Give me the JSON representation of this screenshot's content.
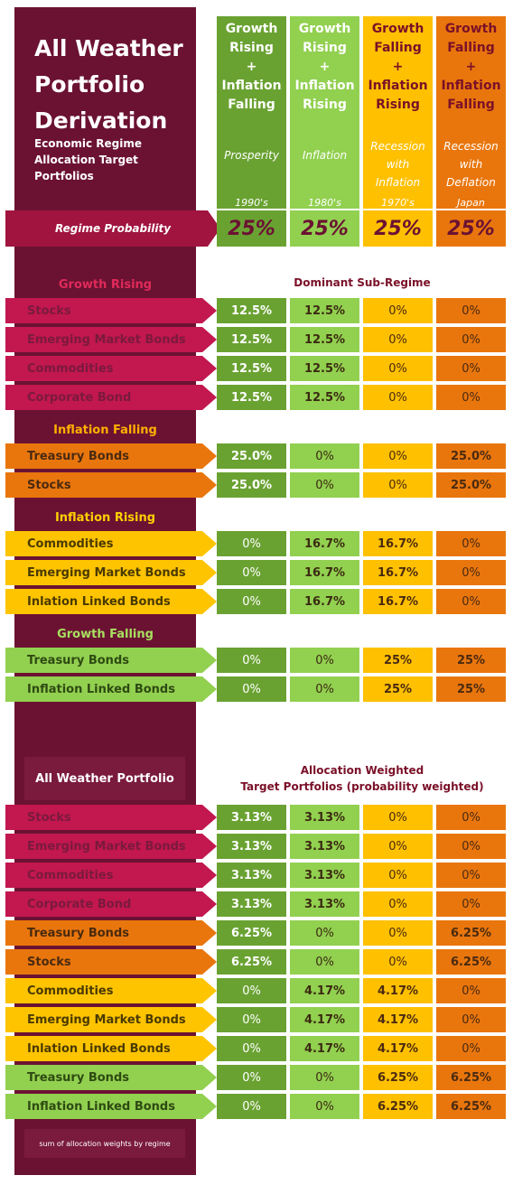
{
  "title": [
    "All Weather",
    "Portfolio",
    "Derivation"
  ],
  "subtitle": [
    "Economic Regime",
    "Allocation Target Portfolios"
  ],
  "regimes": [
    {
      "lines": [
        "Growth",
        "Rising",
        "+",
        "Inflation",
        "Falling"
      ],
      "name": "Prosperity",
      "era": "1990's",
      "prob": "25%"
    },
    {
      "lines": [
        "Growth",
        "Rising",
        "+",
        "Inflation",
        "Rising"
      ],
      "name": "Inflation",
      "era": "1980's",
      "prob": "25%"
    },
    {
      "lines": [
        "Growth",
        "Falling",
        "+",
        "Inflation",
        "Rising"
      ],
      "name": "Recession with Inflation",
      "era": "1970's",
      "prob": "25%"
    },
    {
      "lines": [
        "Growth",
        "Falling",
        "+",
        "Inflation",
        "Falling"
      ],
      "name": "Recession with Deflation",
      "era": "Japan",
      "prob": "25%"
    }
  ],
  "regime_probability_label": "Regime Probability",
  "dominant_header": "Dominant Sub-Regime",
  "sections": [
    {
      "title": "Growth Rising",
      "rows": [
        {
          "label": "Stocks",
          "vals": [
            "12.5%",
            "12.5%",
            "0%",
            "0%"
          ]
        },
        {
          "label": "Emerging Market Bonds",
          "vals": [
            "12.5%",
            "12.5%",
            "0%",
            "0%"
          ]
        },
        {
          "label": "Commodities",
          "vals": [
            "12.5%",
            "12.5%",
            "0%",
            "0%"
          ]
        },
        {
          "label": "Corporate Bond",
          "vals": [
            "12.5%",
            "12.5%",
            "0%",
            "0%"
          ]
        }
      ]
    },
    {
      "title": "Inflation Falling",
      "rows": [
        {
          "label": "Treasury Bonds",
          "vals": [
            "25.0%",
            "0%",
            "0%",
            "25.0%"
          ]
        },
        {
          "label": "Stocks",
          "vals": [
            "25.0%",
            "0%",
            "0%",
            "25.0%"
          ]
        }
      ]
    },
    {
      "title": "Inflation Rising",
      "rows": [
        {
          "label": "Commodities",
          "vals": [
            "0%",
            "16.7%",
            "16.7%",
            "0%"
          ]
        },
        {
          "label": "Emerging Market Bonds",
          "vals": [
            "0%",
            "16.7%",
            "16.7%",
            "0%"
          ]
        },
        {
          "label": "Inlation Linked Bonds",
          "vals": [
            "0%",
            "16.7%",
            "16.7%",
            "0%"
          ]
        }
      ]
    },
    {
      "title": "Growth Falling",
      "rows": [
        {
          "label": "Treasury Bonds",
          "vals": [
            "0%",
            "0%",
            "25%",
            "25%"
          ]
        },
        {
          "label": "Inflation Linked Bonds",
          "vals": [
            "0%",
            "0%",
            "25%",
            "25%"
          ]
        }
      ]
    }
  ],
  "awp_label": "All Weather Portfolio",
  "weighted_header": [
    "Allocation Weighted",
    "Target Portfolios (probability weighted)"
  ],
  "weighted_rows": [
    {
      "label": "Stocks",
      "vals": [
        "3.13%",
        "3.13%",
        "0%",
        "0%"
      ]
    },
    {
      "label": "Emerging Market Bonds",
      "vals": [
        "3.13%",
        "3.13%",
        "0%",
        "0%"
      ]
    },
    {
      "label": "Commodities",
      "vals": [
        "3.13%",
        "3.13%",
        "0%",
        "0%"
      ]
    },
    {
      "label": "Corporate Bond",
      "vals": [
        "3.13%",
        "3.13%",
        "0%",
        "0%"
      ]
    },
    {
      "label": "Treasury Bonds",
      "vals": [
        "6.25%",
        "0%",
        "0%",
        "6.25%"
      ]
    },
    {
      "label": "Stocks",
      "vals": [
        "6.25%",
        "0%",
        "0%",
        "6.25%"
      ]
    },
    {
      "label": "Commodities",
      "vals": [
        "0%",
        "4.17%",
        "4.17%",
        "0%"
      ]
    },
    {
      "label": "Emerging Market Bonds",
      "vals": [
        "0%",
        "4.17%",
        "4.17%",
        "0%"
      ]
    },
    {
      "label": "Inlation Linked Bonds",
      "vals": [
        "0%",
        "4.17%",
        "4.17%",
        "0%"
      ]
    },
    {
      "label": "Treasury Bonds",
      "vals": [
        "0%",
        "0%",
        "6.25%",
        "6.25%"
      ]
    },
    {
      "label": "Inflation Linked Bonds",
      "vals": [
        "0%",
        "0%",
        "6.25%",
        "6.25%"
      ]
    }
  ],
  "sum_label": "sum of allocation weights by regime",
  "colors": {
    "prosperity": "#6aa232",
    "inflation": "#92d050",
    "recession_inflation": "#ffc000",
    "recession_deflation": "#e9760d",
    "band": "#6b1232"
  }
}
